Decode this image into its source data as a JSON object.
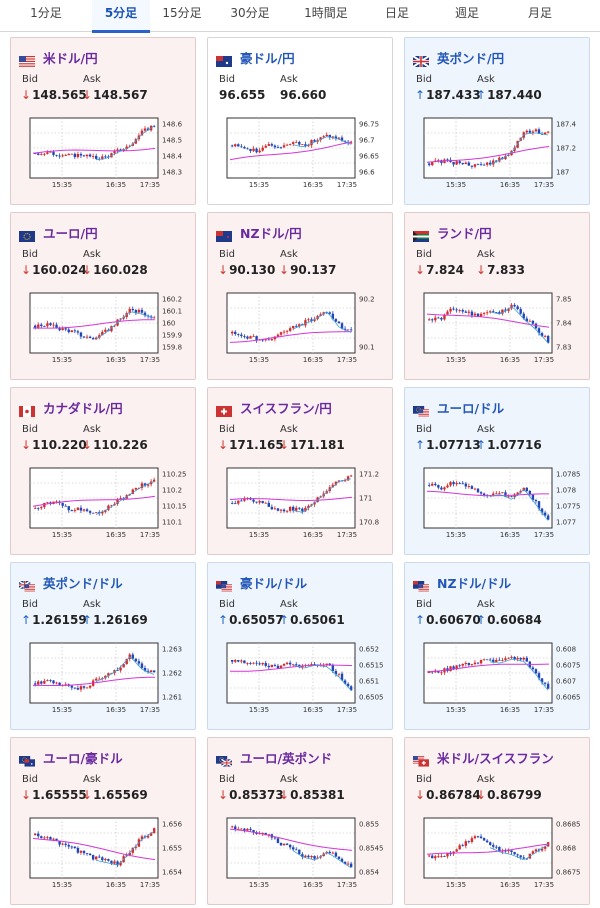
{
  "tabs": [
    {
      "label": "1分足",
      "active": false
    },
    {
      "label": "5分足",
      "active": true
    },
    {
      "label": "15分足",
      "active": false
    },
    {
      "label": "30分足",
      "active": false
    },
    {
      "label": "1時間足",
      "active": false
    },
    {
      "label": "日足",
      "active": false
    },
    {
      "label": "週足",
      "active": false
    },
    {
      "label": "月足",
      "active": false
    }
  ],
  "labels": {
    "bid": "Bid",
    "ask": "Ask"
  },
  "colors": {
    "bull": "#d62b2b",
    "bear": "#2146b8",
    "ma_fast": "#3fa0d6",
    "ma_slow": "#d437d9"
  },
  "x_ticks": [
    "15:35",
    "16:35",
    "17:35"
  ],
  "cards": [
    {
      "name": "usd-jpy",
      "pair": "米ドル/円",
      "flag": "us",
      "state": "down",
      "bid_arrow": "↓",
      "ask_arrow": "↓",
      "bid": "148.565",
      "ask": "148.567",
      "y_ticks": [
        "148.6",
        "148.5",
        "148.4",
        "148.3"
      ],
      "trend": [
        0.4,
        0.4,
        0.38,
        0.35,
        0.38,
        0.3,
        0.33,
        0.45,
        0.55,
        0.8,
        0.95
      ],
      "ma": [
        0.4,
        0.5
      ]
    },
    {
      "name": "aud-jpy",
      "pair": "豪ドル/円",
      "flag": "au",
      "state": "neutral",
      "bid_arrow": "",
      "ask_arrow": "",
      "bid": "96.655",
      "ask": "96.660",
      "y_ticks": [
        "96.75",
        "96.7",
        "96.65",
        "96.6"
      ],
      "trend": [
        0.55,
        0.5,
        0.45,
        0.55,
        0.5,
        0.6,
        0.55,
        0.65,
        0.75,
        0.7,
        0.6
      ],
      "ma": [
        0.25,
        0.6
      ]
    },
    {
      "name": "gbp-jpy",
      "pair": "英ポンド/円",
      "flag": "gb",
      "state": "up",
      "bid_arrow": "↑",
      "ask_arrow": "↑",
      "bid": "187.433",
      "ask": "187.440",
      "y_ticks": [
        "187.4",
        "187.2",
        "187"
      ],
      "trend": [
        0.2,
        0.25,
        0.22,
        0.2,
        0.15,
        0.2,
        0.3,
        0.45,
        0.8,
        0.82,
        0.78
      ],
      "ma": [
        0.2,
        0.5
      ]
    },
    {
      "name": "eur-jpy",
      "pair": "ユーロ/円",
      "flag": "eu",
      "state": "down",
      "bid_arrow": "↓",
      "ask_arrow": "↓",
      "bid": "160.024",
      "ask": "160.028",
      "y_ticks": [
        "160.2",
        "160.1",
        "160",
        "159.9",
        "159.8"
      ],
      "trend": [
        0.45,
        0.48,
        0.4,
        0.35,
        0.25,
        0.2,
        0.35,
        0.55,
        0.75,
        0.7,
        0.62
      ],
      "ma": [
        0.4,
        0.55
      ]
    },
    {
      "name": "nzd-jpy",
      "pair": "NZドル/円",
      "flag": "nz",
      "state": "down",
      "bid_arrow": "↓",
      "ask_arrow": "↓",
      "bid": "90.130",
      "ask": "90.137",
      "y_ticks": [
        "90.2",
        "90.1"
      ],
      "trend": [
        0.3,
        0.25,
        0.2,
        0.15,
        0.3,
        0.4,
        0.5,
        0.6,
        0.75,
        0.45,
        0.35
      ],
      "ma": [
        0.15,
        0.35
      ]
    },
    {
      "name": "zar-jpy",
      "pair": "ランド/円",
      "flag": "za",
      "state": "down",
      "bid_arrow": "↓",
      "ask_arrow": "↓",
      "bid": "7.824",
      "ask": "7.833",
      "y_ticks": [
        "7.85",
        "7.84",
        "7.83"
      ],
      "trend": [
        0.55,
        0.6,
        0.8,
        0.7,
        0.65,
        0.75,
        0.7,
        0.85,
        0.6,
        0.4,
        0.15
      ],
      "ma": [
        0.7,
        0.45
      ]
    },
    {
      "name": "cad-jpy",
      "pair": "カナダドル/円",
      "flag": "ca",
      "state": "down",
      "bid_arrow": "↓",
      "ask_arrow": "↓",
      "bid": "110.220",
      "ask": "110.226",
      "y_ticks": [
        "110.25",
        "110.2",
        "110.15",
        "110.1"
      ],
      "trend": [
        0.3,
        0.4,
        0.45,
        0.25,
        0.3,
        0.2,
        0.3,
        0.45,
        0.6,
        0.75,
        0.85
      ],
      "ma": [
        0.35,
        0.55
      ]
    },
    {
      "name": "chf-jpy",
      "pair": "スイスフラン/円",
      "flag": "ch",
      "state": "down",
      "bid_arrow": "↓",
      "ask_arrow": "↓",
      "bid": "171.165",
      "ask": "171.181",
      "y_ticks": [
        "171.2",
        "171",
        "170.8"
      ],
      "trend": [
        0.4,
        0.5,
        0.45,
        0.35,
        0.25,
        0.3,
        0.25,
        0.45,
        0.65,
        0.85,
        0.9
      ],
      "ma": [
        0.45,
        0.5
      ]
    },
    {
      "name": "eur-usd",
      "pair": "ユーロ/ドル",
      "flag": "eu-us",
      "state": "up",
      "bid_arrow": "↑",
      "ask_arrow": "↑",
      "bid": "1.07713",
      "ask": "1.07716",
      "y_ticks": [
        "1.0785",
        "1.078",
        "1.0775",
        "1.077"
      ],
      "trend": [
        0.75,
        0.7,
        0.8,
        0.75,
        0.65,
        0.55,
        0.6,
        0.5,
        0.7,
        0.4,
        0.1
      ],
      "ma": [
        0.6,
        0.55
      ]
    },
    {
      "name": "gbp-usd",
      "pair": "英ポンド/ドル",
      "flag": "gb-us",
      "state": "up",
      "bid_arrow": "↑",
      "ask_arrow": "↑",
      "bid": "1.26159",
      "ask": "1.26169",
      "y_ticks": [
        "1.263",
        "1.262",
        "1.261"
      ],
      "trend": [
        0.3,
        0.35,
        0.3,
        0.25,
        0.2,
        0.35,
        0.45,
        0.6,
        0.85,
        0.6,
        0.5
      ],
      "ma": [
        0.25,
        0.4
      ]
    },
    {
      "name": "aud-usd",
      "pair": "豪ドル/ドル",
      "flag": "au-us",
      "state": "up",
      "bid_arrow": "↑",
      "ask_arrow": "↑",
      "bid": "0.65057",
      "ask": "0.65061",
      "y_ticks": [
        "0.652",
        "0.6515",
        "0.651",
        "0.6505"
      ],
      "trend": [
        0.75,
        0.7,
        0.72,
        0.65,
        0.6,
        0.7,
        0.62,
        0.68,
        0.65,
        0.45,
        0.2
      ],
      "ma": [
        0.55,
        0.65
      ]
    },
    {
      "name": "nzd-usd",
      "pair": "NZドル/ドル",
      "flag": "nz-us",
      "state": "up",
      "bid_arrow": "↑",
      "ask_arrow": "↑",
      "bid": "0.60670",
      "ask": "0.60684",
      "y_ticks": [
        "0.608",
        "0.6075",
        "0.607",
        "0.6065"
      ],
      "trend": [
        0.5,
        0.55,
        0.6,
        0.65,
        0.7,
        0.75,
        0.72,
        0.8,
        0.75,
        0.5,
        0.2
      ],
      "ma": [
        0.55,
        0.7
      ]
    },
    {
      "name": "eur-aud",
      "pair": "ユーロ/豪ドル",
      "flag": "eu-au",
      "state": "down",
      "bid_arrow": "↓",
      "ask_arrow": "↓",
      "bid": "1.65555",
      "ask": "1.65569",
      "y_ticks": [
        "1.656",
        "1.655",
        "1.654"
      ],
      "trend": [
        0.75,
        0.7,
        0.6,
        0.5,
        0.4,
        0.3,
        0.25,
        0.2,
        0.45,
        0.7,
        0.85
      ],
      "ma": [
        0.7,
        0.3
      ]
    },
    {
      "name": "eur-gbp",
      "pair": "ユーロ/英ポンド",
      "flag": "eu-gb",
      "state": "down",
      "bid_arrow": "↓",
      "ask_arrow": "↓",
      "bid": "0.85373",
      "ask": "0.85381",
      "y_ticks": [
        "0.855",
        "0.8545",
        "0.854"
      ],
      "trend": [
        0.9,
        0.85,
        0.8,
        0.75,
        0.6,
        0.5,
        0.35,
        0.3,
        0.45,
        0.3,
        0.15
      ],
      "ma": [
        0.85,
        0.45
      ]
    },
    {
      "name": "usd-chf",
      "pair": "米ドル/スイスフラン",
      "flag": "us-ch",
      "state": "down",
      "bid_arrow": "↓",
      "ask_arrow": "↓",
      "bid": "0.86784",
      "ask": "0.86799",
      "y_ticks": [
        "0.8685",
        "0.868",
        "0.8675"
      ],
      "trend": [
        0.35,
        0.3,
        0.45,
        0.6,
        0.75,
        0.55,
        0.45,
        0.4,
        0.3,
        0.45,
        0.6
      ],
      "ma": [
        0.35,
        0.55
      ]
    }
  ]
}
